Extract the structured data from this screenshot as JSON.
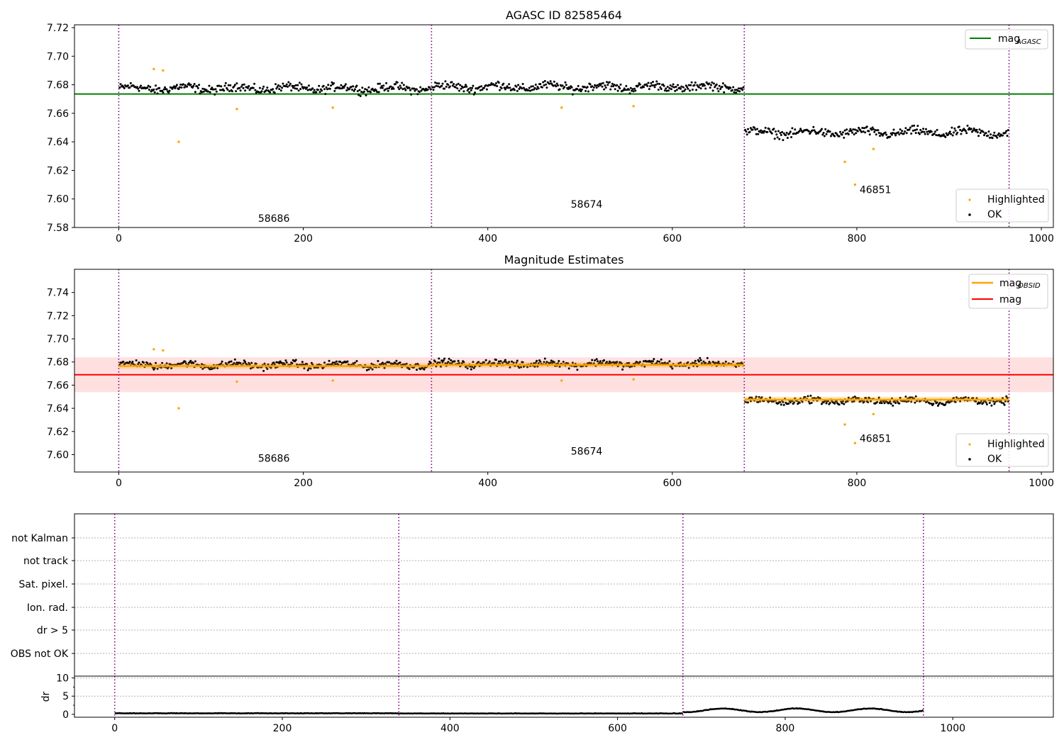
{
  "chart_data": [
    {
      "type": "scatter",
      "title": "AGASC ID 82585464",
      "xlim": [
        -48,
        1013
      ],
      "ylim": [
        7.58,
        7.722
      ],
      "xticks": [
        0,
        200,
        400,
        600,
        800,
        1000
      ],
      "yticks": [
        7.58,
        7.6,
        7.62,
        7.64,
        7.66,
        7.68,
        7.7,
        7.72
      ],
      "ytick_labels": [
        "7.58",
        "7.60",
        "7.62",
        "7.64",
        "7.66",
        "7.68",
        "7.70",
        "7.72"
      ],
      "grid": false,
      "obsid_boundaries": [
        0,
        339,
        678,
        965
      ],
      "segments": [
        {
          "start": 0,
          "end": 339,
          "center": 7.6775,
          "spread": 0.0045
        },
        {
          "start": 339,
          "end": 678,
          "center": 7.6785,
          "spread": 0.0045
        },
        {
          "start": 678,
          "end": 965,
          "center": 7.6465,
          "spread": 0.0045
        }
      ],
      "reference_lines": [
        {
          "name": "mag_AGASC",
          "value": 7.6735,
          "x": [
            -48,
            1013
          ],
          "color": "#008000"
        }
      ],
      "highlighted_points": [
        {
          "x": 38,
          "y": 7.691
        },
        {
          "x": 48,
          "y": 7.69
        },
        {
          "x": 65,
          "y": 7.64
        },
        {
          "x": 128,
          "y": 7.663
        },
        {
          "x": 232,
          "y": 7.664
        },
        {
          "x": 480,
          "y": 7.664
        },
        {
          "x": 558,
          "y": 7.665
        },
        {
          "x": 787,
          "y": 7.626
        },
        {
          "x": 798,
          "y": 7.61
        },
        {
          "x": 818,
          "y": 7.635
        }
      ],
      "annotations": [
        {
          "text": "58686",
          "x": 151,
          "y": 7.584
        },
        {
          "text": "58674",
          "x": 490,
          "y": 7.594
        },
        {
          "text": "46851",
          "x": 803,
          "y": 7.604
        }
      ],
      "legends": [
        {
          "position": "upper-right",
          "entries": [
            {
              "label": "mag",
              "sub": "AGASC",
              "marker": "line",
              "color": "#008000"
            }
          ]
        },
        {
          "position": "lower-right",
          "entries": [
            {
              "label": "Highlighted",
              "marker": "dot",
              "color": "#ffa500"
            },
            {
              "label": "OK",
              "marker": "dot",
              "color": "#000000"
            }
          ]
        }
      ]
    },
    {
      "type": "scatter",
      "title": "Magnitude Estimates",
      "xlim": [
        -48,
        1013
      ],
      "ylim": [
        7.585,
        7.76
      ],
      "xticks": [
        0,
        200,
        400,
        600,
        800,
        1000
      ],
      "yticks": [
        7.6,
        7.62,
        7.64,
        7.66,
        7.68,
        7.7,
        7.72,
        7.74
      ],
      "ytick_labels": [
        "7.60",
        "7.62",
        "7.64",
        "7.66",
        "7.68",
        "7.70",
        "7.72",
        "7.74"
      ],
      "grid": false,
      "obsid_boundaries": [
        0,
        339,
        678,
        965
      ],
      "mag": {
        "value": 7.669,
        "band": [
          7.654,
          7.684
        ],
        "x": [
          -48,
          1013
        ],
        "color": "#ff0000",
        "band_color": "#ffcccc"
      },
      "mag_obsid": [
        {
          "start": 0,
          "end": 339,
          "value": 7.6765,
          "band": [
            7.674,
            7.679
          ]
        },
        {
          "start": 339,
          "end": 678,
          "value": 7.6775,
          "band": [
            7.675,
            7.68
          ]
        },
        {
          "start": 678,
          "end": 965,
          "value": 7.6475,
          "band": [
            7.645,
            7.65
          ]
        }
      ],
      "highlighted_points": [
        {
          "x": 38,
          "y": 7.691
        },
        {
          "x": 48,
          "y": 7.69
        },
        {
          "x": 65,
          "y": 7.64
        },
        {
          "x": 128,
          "y": 7.663
        },
        {
          "x": 232,
          "y": 7.664
        },
        {
          "x": 480,
          "y": 7.664
        },
        {
          "x": 558,
          "y": 7.665
        },
        {
          "x": 787,
          "y": 7.626
        },
        {
          "x": 798,
          "y": 7.61
        },
        {
          "x": 818,
          "y": 7.635
        }
      ],
      "annotations": [
        {
          "text": "58686",
          "x": 151,
          "y": 7.594
        },
        {
          "text": "58674",
          "x": 490,
          "y": 7.6
        },
        {
          "text": "46851",
          "x": 803,
          "y": 7.611
        }
      ],
      "legends": [
        {
          "position": "upper-right",
          "entries": [
            {
              "label": "mag",
              "sub": "OBSID",
              "marker": "line",
              "color": "#ffa500"
            },
            {
              "label": "mag",
              "marker": "line",
              "color": "#ff0000"
            }
          ]
        },
        {
          "position": "lower-right",
          "entries": [
            {
              "label": "Highlighted",
              "marker": "dot",
              "color": "#ffa500"
            },
            {
              "label": "OK",
              "marker": "dot",
              "color": "#000000"
            }
          ]
        }
      ]
    },
    {
      "type": "scatter",
      "xlim": [
        -48,
        1120
      ],
      "categories": [
        "OBS not OK",
        "dr > 5",
        "Ion. rad.",
        "Sat. pixel.",
        "not track",
        "not Kalman"
      ],
      "grid": "horizontal dotted",
      "obsid_boundaries": [
        0,
        339,
        678,
        965
      ],
      "flagged_points": []
    },
    {
      "type": "scatter",
      "xlim": [
        -48,
        1120
      ],
      "ylim": [
        -0.8,
        10.5
      ],
      "yticks": [
        0,
        5,
        10
      ],
      "ylabel": "dr",
      "xticks": [
        0,
        200,
        400,
        600,
        800,
        1000
      ],
      "grid": "horizontal dotted",
      "obsid_boundaries": [
        0,
        339,
        678,
        965
      ],
      "segments": [
        {
          "start": 0,
          "end": 339,
          "level": 0.25
        },
        {
          "start": 339,
          "end": 678,
          "level": 0.2
        },
        {
          "start": 678,
          "end": 965,
          "level": 0.7
        }
      ]
    }
  ]
}
